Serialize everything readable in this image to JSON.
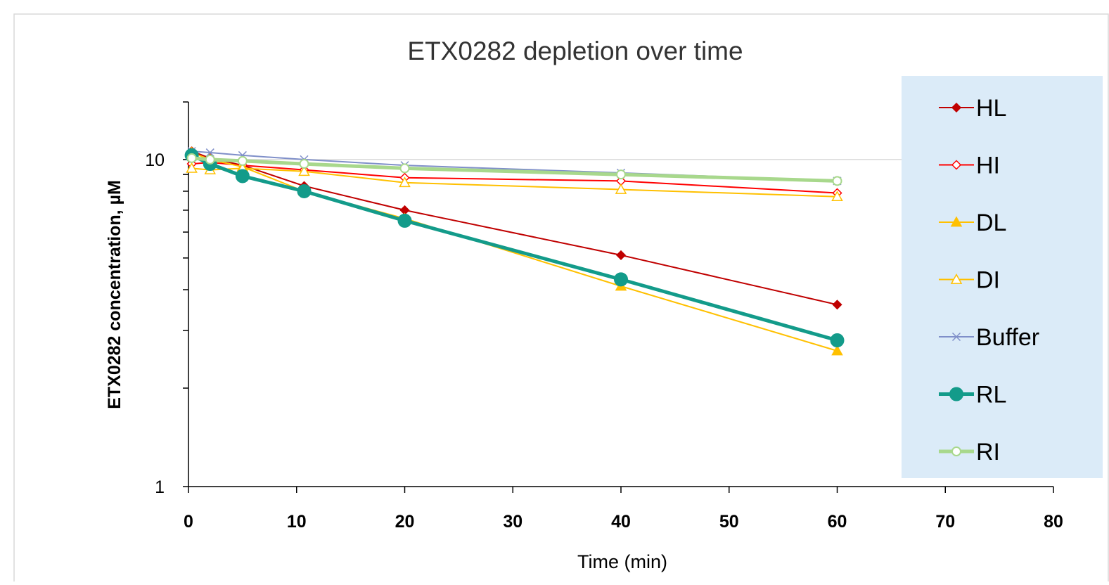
{
  "chart_data": {
    "type": "line",
    "title": "ETX0282 depletion over time",
    "xlabel": "Time (min)",
    "ylabel": "ETX0282 concentration, µM",
    "xlim": [
      0,
      80
    ],
    "ylim": [
      1,
      15
    ],
    "yscale": "log",
    "xticks": [
      0,
      10,
      20,
      30,
      40,
      50,
      60,
      70,
      80
    ],
    "yticks": [
      1,
      10
    ],
    "grid": "horizontal major",
    "legend_position": "right",
    "legend_background": "#dbebf8",
    "series": [
      {
        "name": "HL",
        "color": "#c00000",
        "marker": "diamond-filled",
        "line_weight": "thin",
        "x": [
          0.3,
          2,
          5,
          10.7,
          20,
          40,
          60
        ],
        "y": [
          10.6,
          10.1,
          9.6,
          8.3,
          7.0,
          5.1,
          3.6
        ]
      },
      {
        "name": "HI",
        "color": "#ff0000",
        "marker": "diamond-open",
        "line_weight": "thin",
        "x": [
          0.3,
          2,
          5,
          10.7,
          20,
          40,
          60
        ],
        "y": [
          9.7,
          9.8,
          9.6,
          9.3,
          8.8,
          8.6,
          7.9
        ]
      },
      {
        "name": "DL",
        "color": "#ffc000",
        "marker": "triangle-filled",
        "line_weight": "thin",
        "x": [
          0.3,
          2,
          5,
          10.7,
          20,
          40,
          60
        ],
        "y": [
          10.5,
          10.0,
          9.5,
          8.0,
          6.6,
          4.1,
          2.6
        ]
      },
      {
        "name": "DI",
        "color": "#ffc000",
        "marker": "triangle-open",
        "line_weight": "thin",
        "x": [
          0.3,
          2,
          5,
          10.7,
          20,
          40,
          60
        ],
        "y": [
          9.4,
          9.3,
          9.4,
          9.2,
          8.5,
          8.1,
          7.7
        ]
      },
      {
        "name": "Buffer",
        "color": "#7f8fc9",
        "marker": "x",
        "line_weight": "thin",
        "x": [
          0.3,
          2,
          5,
          10.7,
          20,
          40,
          60
        ],
        "y": [
          10.6,
          10.5,
          10.3,
          10.0,
          9.6,
          9.1,
          8.6
        ]
      },
      {
        "name": "RL",
        "color": "#139b8a",
        "marker": "circle-filled",
        "line_weight": "thick",
        "x": [
          0.3,
          2,
          5,
          10.7,
          20,
          40,
          60
        ],
        "y": [
          10.3,
          9.7,
          8.9,
          8.0,
          6.5,
          4.3,
          2.8
        ]
      },
      {
        "name": "RI",
        "color": "#a8d88c",
        "marker": "circle-open",
        "line_weight": "thick",
        "x": [
          0.3,
          2,
          5,
          10.7,
          20,
          40,
          60
        ],
        "y": [
          10.1,
          10.0,
          9.9,
          9.7,
          9.4,
          9.0,
          8.6
        ]
      }
    ]
  }
}
